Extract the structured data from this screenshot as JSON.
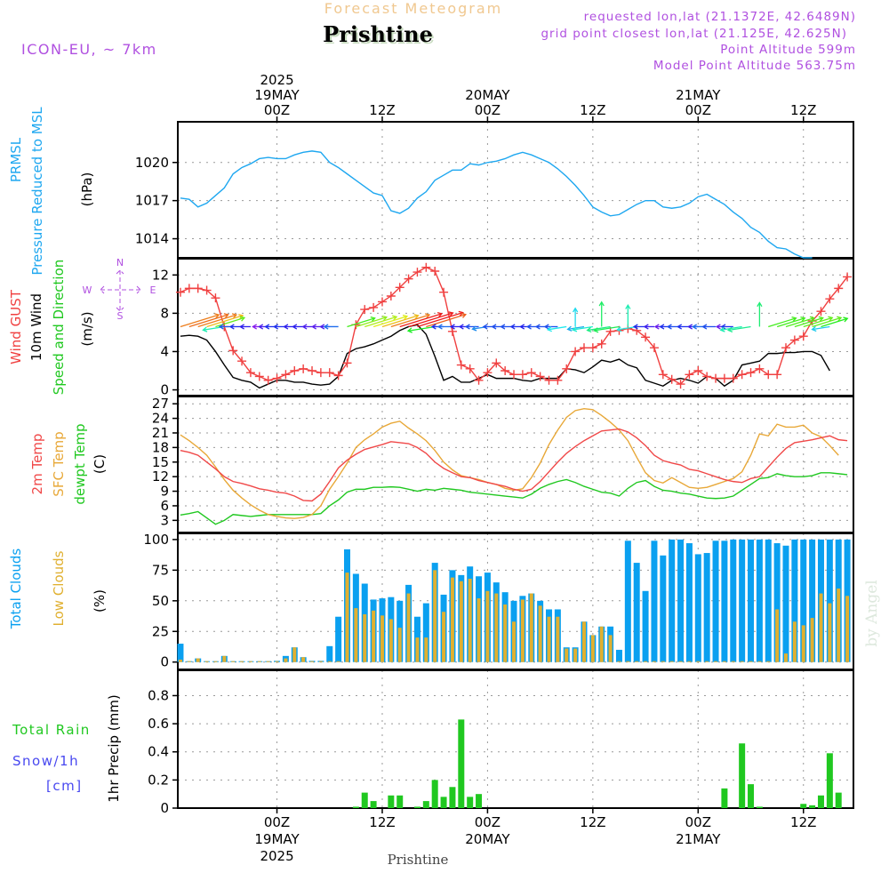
{
  "header": {
    "subtitle": "Forecast Meteogram",
    "title": "Prishtine",
    "model": "ICON-EU, ~ 7km",
    "requested": "requested lon,lat (21.1372E, 42.6489N)",
    "grid_point": "grid point closest lon,lat (21.125E, 42.625N)",
    "point_altitude": "Point Altitude 599m",
    "model_altitude": "Model Point Altitude 563.75m",
    "footer": "Prishtine",
    "credit": "by Angel"
  },
  "time_axis": {
    "top_labels": [
      {
        "hour": 0,
        "lines": [
          "2025",
          "19MAY",
          "00Z"
        ]
      },
      {
        "hour": 12,
        "lines": [
          "12Z"
        ]
      },
      {
        "hour": 24,
        "lines": [
          "20MAY",
          "00Z"
        ]
      },
      {
        "hour": 36,
        "lines": [
          "12Z"
        ]
      },
      {
        "hour": 48,
        "lines": [
          "21MAY",
          "00Z"
        ]
      },
      {
        "hour": 60,
        "lines": [
          "12Z"
        ]
      }
    ],
    "bottom_labels": [
      {
        "hour": 0,
        "lines": [
          "00Z",
          "19MAY",
          "2025"
        ]
      },
      {
        "hour": 12,
        "lines": [
          "12Z"
        ]
      },
      {
        "hour": 24,
        "lines": [
          "00Z",
          "20MAY"
        ]
      },
      {
        "hour": 36,
        "lines": [
          "12Z"
        ]
      },
      {
        "hour": 48,
        "lines": [
          "00Z",
          "21MAY"
        ]
      },
      {
        "hour": 60,
        "lines": [
          "12Z"
        ]
      }
    ],
    "range_hours": [
      -11.3,
      65.7
    ]
  },
  "panel_labels": {
    "pressure": [
      "PRMSL",
      "Pressure Reduced to MSL",
      "(hPa)"
    ],
    "wind": [
      "Wind GUST",
      "10m Wind",
      "Speed and Direction",
      "(m/s)"
    ],
    "compass": {
      "n": "N",
      "s": "S",
      "w": "W",
      "e": "E"
    },
    "temp": [
      "2m Temp",
      "SFC Temp",
      "dewpt Temp",
      "(C)"
    ],
    "clouds": [
      "Total Clouds",
      "Low Clouds",
      "(%)"
    ],
    "precip": [
      "Total  Rain",
      "Snow/1h",
      "[cm]",
      "1hr Precip (mm)"
    ]
  },
  "colors": {
    "pressure": "#1ea7f0",
    "gust": "#f04040",
    "wind10m": "#000000",
    "temp2m": "#f04848",
    "sfc": "#e8a838",
    "dewpt": "#20c820",
    "total_clouds": "#0aa0f0",
    "low_clouds": "#e0b030",
    "rain": "#20c820",
    "purple": "#b050e0"
  },
  "chart_data": [
    {
      "type": "line",
      "title": "PRMSL Pressure Reduced to MSL",
      "ylabel": "(hPa)",
      "yticks": [
        "1014",
        "1017",
        "1020"
      ],
      "ylim": [
        1012.5,
        1023.2
      ],
      "x_start_hour": -11,
      "series": [
        {
          "name": "PRMSL",
          "values": [
            1017.2,
            1017.1,
            1016.5,
            1016.8,
            1017.4,
            1018.0,
            1019.1,
            1019.6,
            1019.9,
            1020.3,
            1020.4,
            1020.3,
            1020.3,
            1020.6,
            1020.8,
            1020.9,
            1020.8,
            1020.0,
            1019.6,
            1019.1,
            1018.6,
            1018.1,
            1017.6,
            1017.4,
            1016.2,
            1016.0,
            1016.4,
            1017.2,
            1017.7,
            1018.6,
            1019.0,
            1019.4,
            1019.4,
            1019.9,
            1019.8,
            1020.0,
            1020.1,
            1020.3,
            1020.6,
            1020.8,
            1020.6,
            1020.3,
            1020.0,
            1019.5,
            1018.9,
            1018.2,
            1017.4,
            1016.5,
            1016.1,
            1015.8,
            1015.9,
            1016.3,
            1016.7,
            1017.0,
            1017.0,
            1016.5,
            1016.4,
            1016.5,
            1016.8,
            1017.3,
            1017.5,
            1017.1,
            1016.7,
            1016.1,
            1015.6,
            1014.9,
            1014.5,
            1013.8,
            1013.3,
            1013.2,
            1012.8,
            1012.5,
            1012.5
          ]
        }
      ]
    },
    {
      "type": "line",
      "title": "Wind GUST / 10m Wind Speed and Direction",
      "ylabel": "(m/s)",
      "yticks": [
        "0",
        "4",
        "8",
        "12"
      ],
      "ylim": [
        -0.6,
        13.7
      ],
      "x_start_hour": -11,
      "series": [
        {
          "name": "Wind GUST",
          "values": [
            10.2,
            10.6,
            10.6,
            10.4,
            9.6,
            6.6,
            4.1,
            3.0,
            1.8,
            1.4,
            1.0,
            1.2,
            1.6,
            2.0,
            2.2,
            2.0,
            1.8,
            1.8,
            1.5,
            2.8,
            6.8,
            8.4,
            8.6,
            9.2,
            9.8,
            10.7,
            11.6,
            12.3,
            12.8,
            12.4,
            10.2,
            6.1,
            2.6,
            2.2,
            1.0,
            1.8,
            2.8,
            2.0,
            1.6,
            1.6,
            1.8,
            1.4,
            1.0,
            1.0,
            2.2,
            4.0,
            4.4,
            4.4,
            4.8,
            6.1,
            6.2,
            6.4,
            6.2,
            5.5,
            4.4,
            1.6,
            1.1,
            0.6,
            1.6,
            2.0,
            1.4,
            1.2,
            1.2,
            1.2,
            1.6,
            1.8,
            2.2,
            1.6,
            1.6,
            4.4,
            5.2,
            5.6,
            7.2,
            8.2,
            9.5,
            10.6,
            11.8,
            11.6,
            10.5,
            5.3
          ]
        },
        {
          "name": "10m Wind",
          "values": [
            5.6,
            5.7,
            5.6,
            5.2,
            4.0,
            2.6,
            1.3,
            1.0,
            0.8,
            0.2,
            0.6,
            1.0,
            1.0,
            0.8,
            0.8,
            0.6,
            0.5,
            0.6,
            1.4,
            3.8,
            4.3,
            4.5,
            4.8,
            5.2,
            5.6,
            6.2,
            6.6,
            6.8,
            5.8,
            3.5,
            1.0,
            1.4,
            0.8,
            0.8,
            1.2,
            1.6,
            1.2,
            1.2,
            1.2,
            1.0,
            0.9,
            1.2,
            1.2,
            1.2,
            2.2,
            2.1,
            1.8,
            2.4,
            3.1,
            2.9,
            3.2,
            2.6,
            2.3,
            1.0,
            0.7,
            0.4,
            1.0,
            1.2,
            1.0,
            0.7,
            1.4,
            1.2,
            0.4,
            1.0,
            2.6,
            2.8,
            3.0,
            3.8,
            3.8,
            3.9,
            3.9,
            4.0,
            4.0,
            3.6,
            2.0
          ]
        }
      ]
    },
    {
      "type": "line",
      "title": "2m Temp / SFC Temp / dewpt Temp",
      "ylabel": "(C)",
      "yticks": [
        "3",
        "6",
        "9",
        "12",
        "15",
        "18",
        "21",
        "24",
        "27"
      ],
      "ylim": [
        0.5,
        28.5
      ],
      "x_start_hour": -11,
      "series": [
        {
          "name": "2m Temp",
          "values": [
            17.4,
            17.0,
            16.4,
            15.0,
            13.6,
            12.0,
            11.0,
            10.6,
            10.1,
            9.5,
            9.2,
            8.8,
            8.6,
            8.0,
            7.1,
            7.0,
            8.4,
            11.0,
            13.8,
            15.4,
            16.6,
            17.6,
            18.1,
            18.6,
            19.2,
            19.0,
            18.8,
            18.0,
            16.8,
            15.0,
            13.7,
            12.8,
            12.0,
            11.8,
            11.2,
            10.8,
            10.4,
            10.0,
            9.4,
            9.0,
            9.4,
            11.0,
            13.0,
            15.0,
            16.8,
            18.2,
            19.4,
            20.4,
            21.4,
            21.6,
            21.8,
            21.2,
            20.0,
            18.4,
            16.4,
            15.3,
            14.8,
            14.4,
            13.5,
            13.2,
            12.6,
            12.0,
            11.4,
            11.0,
            10.8,
            11.6,
            12.0,
            14.0,
            16.0,
            17.8,
            19.0,
            19.3,
            19.6,
            20.0,
            20.4,
            19.6,
            19.4,
            18.8,
            17.6
          ]
        },
        {
          "name": "SFC Temp",
          "values": [
            20.6,
            19.4,
            18.0,
            16.4,
            14.0,
            11.4,
            9.2,
            7.6,
            6.2,
            5.1,
            4.2,
            3.8,
            3.5,
            3.4,
            3.6,
            4.2,
            6.0,
            9.4,
            12.0,
            14.8,
            18.0,
            19.6,
            20.8,
            22.2,
            23.0,
            23.4,
            22.0,
            20.8,
            19.4,
            17.4,
            15.0,
            13.4,
            12.2,
            11.8,
            11.4,
            10.8,
            10.4,
            9.6,
            9.2,
            9.5,
            11.8,
            14.8,
            18.6,
            21.6,
            24.2,
            25.6,
            26.0,
            25.8,
            24.6,
            23.2,
            21.6,
            19.4,
            16.0,
            12.8,
            11.2,
            10.7,
            11.8,
            10.8,
            9.8,
            9.6,
            9.8,
            10.4,
            11.0,
            11.6,
            13.0,
            16.4,
            20.8,
            20.4,
            22.8,
            22.2,
            22.2,
            22.6,
            21.0,
            20.2,
            18.4,
            16.4
          ]
        },
        {
          "name": "dewpt Temp",
          "values": [
            4.1,
            4.4,
            4.8,
            3.5,
            2.2,
            3.0,
            4.2,
            4.0,
            3.8,
            4.0,
            4.2,
            4.2,
            4.2,
            4.2,
            4.2,
            4.2,
            4.4,
            6.0,
            7.2,
            8.8,
            9.4,
            9.4,
            9.8,
            9.8,
            9.9,
            9.8,
            9.4,
            9.0,
            9.4,
            9.2,
            9.6,
            9.4,
            9.2,
            8.8,
            8.6,
            8.4,
            8.2,
            8.0,
            7.8,
            7.6,
            8.4,
            9.6,
            10.4,
            11.0,
            11.4,
            10.8,
            10.0,
            9.4,
            8.8,
            8.6,
            8.0,
            9.6,
            10.8,
            11.2,
            10.0,
            9.2,
            9.0,
            8.6,
            8.4,
            8.0,
            7.6,
            7.5,
            7.6,
            8.0,
            9.2,
            10.4,
            11.6,
            11.8,
            12.6,
            12.2,
            12.0,
            12.0,
            12.2,
            12.8,
            12.8,
            12.6,
            12.4
          ]
        }
      ]
    },
    {
      "type": "bar",
      "title": "Total Clouds / Low Clouds",
      "ylabel": "(%)",
      "yticks": [
        "0",
        "25",
        "50",
        "75",
        "100"
      ],
      "ylim": [
        -6,
        105
      ],
      "x_start_hour": -11,
      "series": [
        {
          "name": "Total Clouds",
          "values": [
            15,
            0,
            3,
            0,
            0,
            5,
            0,
            0,
            0,
            0,
            0,
            1,
            5,
            12,
            4,
            1,
            1,
            13,
            37,
            92,
            72,
            64,
            51,
            52,
            53,
            50,
            63,
            37,
            48,
            81,
            55,
            75,
            71,
            78,
            70,
            73,
            65,
            57,
            50,
            54,
            56,
            50,
            43,
            43,
            12,
            12,
            33,
            22,
            29,
            29,
            10,
            99,
            81,
            58,
            99,
            87,
            100,
            100,
            97,
            88,
            89,
            99,
            99,
            100,
            100,
            100,
            100,
            100,
            97,
            95,
            100,
            100,
            100,
            100,
            100,
            100,
            100,
            100,
            100,
            100
          ]
        },
        {
          "name": "Low Clouds",
          "values": [
            2,
            0,
            3,
            0,
            0,
            5,
            0,
            0,
            0,
            0,
            0,
            0,
            3,
            12,
            4,
            0,
            0,
            0,
            0,
            73,
            44,
            39,
            42,
            38,
            35,
            28,
            56,
            20,
            20,
            75,
            41,
            69,
            66,
            68,
            52,
            58,
            56,
            47,
            33,
            51,
            56,
            46,
            37,
            37,
            11,
            11,
            33,
            22,
            29,
            22,
            0,
            0,
            0,
            0,
            0,
            0,
            0,
            0,
            0,
            0,
            0,
            0,
            0,
            0,
            0,
            0,
            0,
            0,
            43,
            7,
            33,
            30,
            36,
            56,
            48,
            60,
            54,
            43,
            35,
            49,
            32,
            10
          ]
        }
      ]
    },
    {
      "type": "bar",
      "title": "1hr Precip",
      "ylabel": "1hr Precip (mm)",
      "yticks": [
        "0",
        "0.2",
        "0.4",
        "0.6",
        "0.8"
      ],
      "ylim": [
        0,
        0.98
      ],
      "x_start_hour": -11,
      "series": [
        {
          "name": "Total Rain",
          "values": [
            0,
            0,
            0,
            0,
            0,
            0,
            0,
            0,
            0,
            0,
            0,
            0,
            0,
            0,
            0,
            0,
            0,
            0,
            0,
            0,
            0.01,
            0.11,
            0.05,
            0,
            0.09,
            0.09,
            0,
            0.01,
            0.05,
            0.2,
            0.08,
            0.15,
            0.63,
            0.08,
            0.1,
            0,
            0,
            0,
            0,
            0,
            0,
            0,
            0,
            0,
            0,
            0,
            0,
            0,
            0,
            0,
            0,
            0,
            0,
            0,
            0,
            0,
            0,
            0,
            0,
            0,
            0,
            0,
            0.14,
            0,
            0.46,
            0.17,
            0.01,
            0,
            0,
            0,
            0,
            0.03,
            0.02,
            0.09,
            0.39,
            0.11
          ]
        }
      ]
    }
  ]
}
